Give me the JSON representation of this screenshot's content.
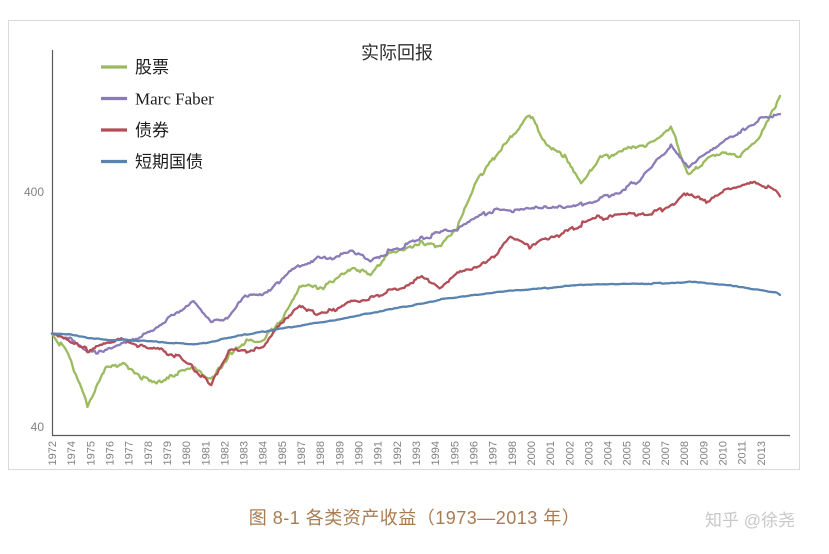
{
  "chart": {
    "title": "实际回报",
    "border_color": "#d9d9d9",
    "axis_color": "#5a5a5a",
    "tick_label_color": "#828282"
  },
  "chart_data": {
    "type": "line",
    "title": "实际回报",
    "y_scale": "log",
    "y_ticks": [
      "400",
      "40"
    ],
    "y_tick_values": [
      400,
      40
    ],
    "ylim": [
      37,
      1600
    ],
    "x_note": "monthly index, Dec 1972 through early 2014; values below are December-of-year anchors 1972-2013 plus final point; start value = 100",
    "x_tick_labels": [
      "1972",
      "1974",
      "1975",
      "1976",
      "1977",
      "1978",
      "1979",
      "1980",
      "1981",
      "1982",
      "1983",
      "1984",
      "1985",
      "1987",
      "1988",
      "1989",
      "1990",
      "1991",
      "1992",
      "1993",
      "1994",
      "1995",
      "1996",
      "1997",
      "1998",
      "2000",
      "2001",
      "2002",
      "2003",
      "2004",
      "2005",
      "2006",
      "2007",
      "2008",
      "2009",
      "2010",
      "2011",
      "2013"
    ],
    "anchor_years": [
      1972,
      1973,
      1974,
      1975,
      1976,
      1977,
      1978,
      1979,
      1980,
      1981,
      1982,
      1983,
      1984,
      1985,
      1986,
      1987,
      1988,
      1989,
      1990,
      1991,
      1992,
      1993,
      1994,
      1995,
      1996,
      1997,
      1998,
      1999,
      2000,
      2001,
      2002,
      2003,
      2004,
      2005,
      2006,
      2007,
      2008,
      2009,
      2010,
      2011,
      2012,
      2013,
      2014
    ],
    "legend_position": "top-left",
    "series": [
      {
        "name": "股票",
        "color": "#9CBB5F",
        "values": [
          100,
          80,
          50,
          70,
          76,
          66,
          63,
          67,
          71,
          63,
          80,
          94,
          93,
          117,
          158,
          158,
          165,
          196,
          176,
          214,
          228,
          242,
          240,
          290,
          440,
          560,
          700,
          845,
          640,
          560,
          430,
          560,
          590,
          615,
          660,
          745,
          470,
          545,
          595,
          575,
          690,
          960,
          1025
        ]
      },
      {
        "name": "Marc Faber",
        "color": "#8B7CB8",
        "values": [
          100,
          96,
          84,
          84,
          90,
          97,
          107,
          122,
          138,
          112,
          118,
          146,
          150,
          170,
          196,
          210,
          212,
          228,
          205,
          222,
          238,
          258,
          268,
          280,
          310,
          336,
          330,
          345,
          350,
          350,
          355,
          375,
          400,
          440,
          520,
          630,
          510,
          585,
          655,
          730,
          815,
          850,
          858
        ]
      },
      {
        "name": "债券",
        "color": "#B34D57",
        "values": [
          100,
          92,
          85,
          91,
          94,
          88,
          86,
          81,
          71,
          60,
          84,
          84,
          89,
          112,
          132,
          120,
          127,
          139,
          140,
          152,
          160,
          174,
          157,
          181,
          189,
          212,
          260,
          232,
          252,
          268,
          295,
          311,
          318,
          326,
          327,
          352,
          396,
          367,
          406,
          430,
          434,
          400,
          383
        ]
      },
      {
        "name": "短期国债",
        "color": "#5A84B0",
        "values": [
          100,
          99,
          96,
          94,
          94,
          93,
          92,
          91,
          90,
          92,
          96,
          99,
          102,
          105,
          108,
          111,
          114,
          118,
          122,
          126,
          130,
          134,
          140,
          143,
          146,
          149,
          152,
          154,
          156,
          159,
          161,
          162,
          162,
          163,
          163,
          164,
          166,
          164,
          161,
          157,
          153,
          149,
          146
        ]
      }
    ]
  },
  "caption": {
    "text": "图 8-1 各类资产收益（1973—2013 年）",
    "color": "#a87c52"
  },
  "watermark": {
    "text": "知乎 @徐尧",
    "color": "#c8c8c8"
  }
}
